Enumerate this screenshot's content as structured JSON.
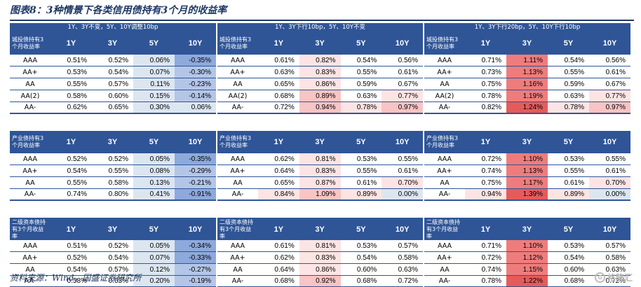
{
  "figure_title": "图表8：3种情景下各类信用债持有3个月的收益率",
  "source": "资料来源：Wind，国盛证券研究所",
  "watermark": {
    "logo": "G",
    "text": "格隆汇"
  },
  "columns": [
    "1Y",
    "3Y",
    "5Y",
    "10Y"
  ],
  "colors": {
    "header_blue": "#2f5597",
    "neg_strong": "#8ea9db",
    "neg_mid": "#b4c6e7",
    "neg_light": "#dce6f1",
    "pos_light": "#fde4e4",
    "pos_mid": "#f8c4c4",
    "pos_strong": "#ef7c7c",
    "pos_max": "#e55b5b"
  },
  "scenarios": [
    {
      "label": "1Y、3Y不变，5Y、10Y调整10bp"
    },
    {
      "label": "1Y、3Y下行10bp，5Y、10Y不变"
    },
    {
      "label": "1Y、3Y下行20bp，5Y、10Y下行10bp"
    }
  ],
  "sections": [
    {
      "corners": [
        "城投债持有3个月收益率",
        "城投债持有3个月收益率",
        "城投债持有3个月收益率"
      ],
      "tables": [
        {
          "rows": [
            {
              "label": "AAA",
              "values": [
                "0.51%",
                "0.52%",
                "0.06%",
                "-0.35%"
              ],
              "bg": [
                "",
                "",
                "neg_light",
                "neg_strong"
              ]
            },
            {
              "label": "AA+",
              "values": [
                "0.53%",
                "0.54%",
                "0.07%",
                "-0.30%"
              ],
              "bg": [
                "",
                "",
                "neg_light",
                "neg_mid"
              ]
            },
            {
              "label": "AA",
              "values": [
                "0.55%",
                "0.57%",
                "0.11%",
                "-0.23%"
              ],
              "bg": [
                "",
                "",
                "neg_light",
                "neg_mid"
              ]
            },
            {
              "label": "AA(2)",
              "values": [
                "0.58%",
                "0.60%",
                "0.15%",
                "-0.14%"
              ],
              "bg": [
                "",
                "",
                "neg_light",
                "neg_mid"
              ]
            },
            {
              "label": "AA-",
              "values": [
                "0.62%",
                "0.65%",
                "0.30%",
                "0.06%"
              ],
              "bg": [
                "",
                "",
                "neg_light",
                "neg_light"
              ]
            }
          ]
        },
        {
          "rows": [
            {
              "label": "AAA",
              "values": [
                "0.61%",
                "0.82%",
                "0.54%",
                "0.56%"
              ],
              "bg": [
                "",
                "pos_light",
                "",
                ""
              ]
            },
            {
              "label": "AA+",
              "values": [
                "0.63%",
                "0.83%",
                "0.55%",
                "0.61%"
              ],
              "bg": [
                "",
                "pos_light",
                "",
                ""
              ]
            },
            {
              "label": "AA",
              "values": [
                "0.65%",
                "0.86%",
                "0.59%",
                "0.67%"
              ],
              "bg": [
                "",
                "pos_light",
                "",
                ""
              ]
            },
            {
              "label": "AA(2)",
              "values": [
                "0.68%",
                "0.89%",
                "0.63%",
                "0.77%"
              ],
              "bg": [
                "",
                "pos_mid",
                "",
                "pos_light"
              ]
            },
            {
              "label": "AA-",
              "values": [
                "0.72%",
                "0.94%",
                "0.78%",
                "0.97%"
              ],
              "bg": [
                "",
                "pos_mid",
                "pos_light",
                "pos_mid"
              ]
            }
          ]
        },
        {
          "rows": [
            {
              "label": "AAA",
              "values": [
                "0.71%",
                "1.11%",
                "0.54%",
                "0.56%"
              ],
              "bg": [
                "",
                "pos_strong",
                "",
                ""
              ]
            },
            {
              "label": "AA+",
              "values": [
                "0.73%",
                "1.13%",
                "0.55%",
                "0.61%"
              ],
              "bg": [
                "",
                "pos_strong",
                "",
                ""
              ]
            },
            {
              "label": "AA",
              "values": [
                "0.75%",
                "1.16%",
                "0.59%",
                "0.67%"
              ],
              "bg": [
                "",
                "pos_strong",
                "",
                ""
              ]
            },
            {
              "label": "AA(2)",
              "values": [
                "0.78%",
                "1.19%",
                "0.63%",
                "0.77%"
              ],
              "bg": [
                "",
                "pos_strong",
                "",
                "pos_light"
              ]
            },
            {
              "label": "AA-",
              "values": [
                "0.82%",
                "1.24%",
                "0.78%",
                "0.97%"
              ],
              "bg": [
                "",
                "pos_max",
                "pos_light",
                "pos_mid"
              ]
            }
          ]
        }
      ]
    },
    {
      "corners": [
        "产业债持有3个月收益率",
        "产业债持有3个月收益率",
        "产业债持有3个月收益率"
      ],
      "tables": [
        {
          "rows": [
            {
              "label": "AAA",
              "values": [
                "0.52%",
                "0.52%",
                "0.05%",
                "-0.35%"
              ],
              "bg": [
                "",
                "",
                "neg_light",
                "neg_strong"
              ]
            },
            {
              "label": "AA+",
              "values": [
                "0.54%",
                "0.55%",
                "0.08%",
                "-0.29%"
              ],
              "bg": [
                "",
                "",
                "neg_light",
                "neg_mid"
              ]
            },
            {
              "label": "AA",
              "values": [
                "0.55%",
                "0.58%",
                "0.13%",
                "-0.21%"
              ],
              "bg": [
                "",
                "",
                "neg_light",
                "neg_mid"
              ]
            },
            {
              "label": "AA-",
              "values": [
                "0.74%",
                "0.80%",
                "0.41%",
                "-0.91%"
              ],
              "bg": [
                "",
                "",
                "neg_light",
                "neg_strong"
              ]
            }
          ]
        },
        {
          "rows": [
            {
              "label": "AAA",
              "values": [
                "0.62%",
                "0.81%",
                "0.53%",
                "0.55%"
              ],
              "bg": [
                "",
                "pos_light",
                "",
                ""
              ]
            },
            {
              "label": "AA+",
              "values": [
                "0.64%",
                "0.83%",
                "0.55%",
                "0.61%"
              ],
              "bg": [
                "",
                "pos_light",
                "",
                ""
              ]
            },
            {
              "label": "AA",
              "values": [
                "0.65%",
                "0.87%",
                "0.61%",
                "0.70%"
              ],
              "bg": [
                "",
                "pos_light",
                "",
                "pos_light"
              ]
            },
            {
              "label": "AA-",
              "values": [
                "0.84%",
                "1.09%",
                "0.89%",
                "0.00%"
              ],
              "bg": [
                "pos_light",
                "pos_mid",
                "pos_light",
                "neg_light"
              ]
            }
          ]
        },
        {
          "rows": [
            {
              "label": "AAA",
              "values": [
                "0.72%",
                "1.10%",
                "0.53%",
                "0.55%"
              ],
              "bg": [
                "",
                "pos_strong",
                "",
                ""
              ]
            },
            {
              "label": "AA+",
              "values": [
                "0.74%",
                "1.13%",
                "0.55%",
                "0.61%"
              ],
              "bg": [
                "",
                "pos_strong",
                "",
                ""
              ]
            },
            {
              "label": "AA",
              "values": [
                "0.75%",
                "1.17%",
                "0.61%",
                "0.70%"
              ],
              "bg": [
                "",
                "pos_strong",
                "",
                "pos_light"
              ]
            },
            {
              "label": "AA-",
              "values": [
                "0.94%",
                "1.39%",
                "0.89%",
                "0.00%"
              ],
              "bg": [
                "pos_light",
                "pos_max",
                "pos_light",
                "neg_light"
              ]
            }
          ]
        }
      ]
    },
    {
      "corners": [
        "二级资本债持有3个月收益率",
        "二级资本债持有3个月收益率",
        "二级资本债持有3个月收益率"
      ],
      "tables": [
        {
          "rows": [
            {
              "label": "AAA",
              "values": [
                "0.51%",
                "0.52%",
                "0.05%",
                "-0.34%"
              ],
              "bg": [
                "",
                "",
                "neg_light",
                "neg_strong"
              ]
            },
            {
              "label": "AA+",
              "values": [
                "0.52%",
                "0.54%",
                "0.07%",
                "-0.33%"
              ],
              "bg": [
                "",
                "",
                "neg_light",
                "neg_strong"
              ]
            },
            {
              "label": "AA",
              "values": [
                "0.54%",
                "0.57%",
                "0.12%",
                "-0.27%"
              ],
              "bg": [
                "",
                "",
                "neg_light",
                "neg_mid"
              ]
            },
            {
              "label": "AA-",
              "values": [
                "0.58%",
                "0.63%",
                "0.20%",
                "-0.19%"
              ],
              "bg": [
                "",
                "",
                "neg_light",
                "neg_mid"
              ]
            }
          ]
        },
        {
          "rows": [
            {
              "label": "AAA",
              "values": [
                "0.61%",
                "0.81%",
                "0.53%",
                "0.57%"
              ],
              "bg": [
                "",
                "pos_light",
                "",
                ""
              ]
            },
            {
              "label": "AA+",
              "values": [
                "0.62%",
                "0.83%",
                "0.54%",
                "0.58%"
              ],
              "bg": [
                "",
                "pos_light",
                "",
                ""
              ]
            },
            {
              "label": "AA",
              "values": [
                "0.64%",
                "0.86%",
                "0.60%",
                "0.63%"
              ],
              "bg": [
                "",
                "pos_light",
                "",
                ""
              ]
            },
            {
              "label": "AA-",
              "values": [
                "0.68%",
                "0.92%",
                "0.68%",
                "0.72%"
              ],
              "bg": [
                "",
                "pos_mid",
                "",
                ""
              ]
            }
          ]
        },
        {
          "rows": [
            {
              "label": "AAA",
              "values": [
                "0.71%",
                "1.10%",
                "0.53%",
                "0.57%"
              ],
              "bg": [
                "",
                "pos_strong",
                "",
                ""
              ]
            },
            {
              "label": "AA+",
              "values": [
                "0.72%",
                "1.12%",
                "0.54%",
                "0.58%"
              ],
              "bg": [
                "",
                "pos_strong",
                "",
                ""
              ]
            },
            {
              "label": "AA",
              "values": [
                "0.74%",
                "1.15%",
                "0.60%",
                "0.63%"
              ],
              "bg": [
                "",
                "pos_strong",
                "",
                ""
              ]
            },
            {
              "label": "AA-",
              "values": [
                "0.78%",
                "1.22%",
                "0.68%",
                "0.72%"
              ],
              "bg": [
                "",
                "pos_max",
                "",
                ""
              ]
            }
          ]
        }
      ]
    }
  ]
}
